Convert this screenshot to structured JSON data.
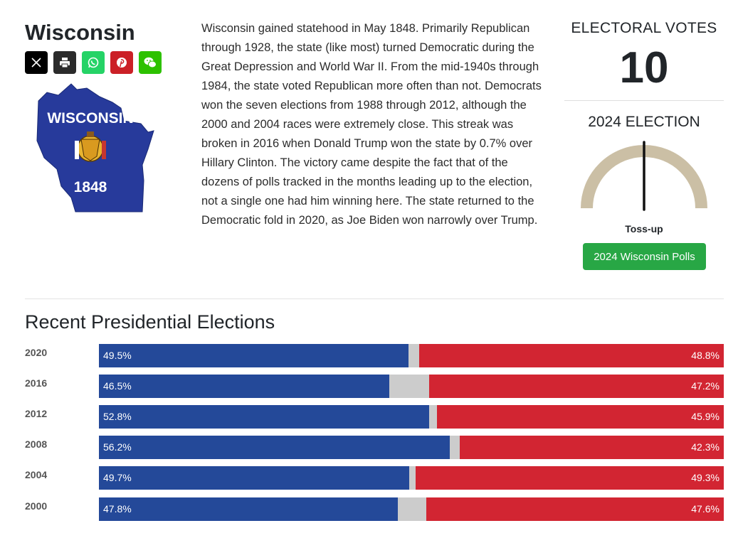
{
  "state": {
    "name": "Wisconsin",
    "flag_title": "WISCONSIN",
    "flag_year": "1848",
    "description": "Wisconsin gained statehood in May 1848. Primarily Republican through 1928, the state (like most) turned Democratic during the Great Depression and World War II. From the mid-1940s through 1984, the state voted Republican more often than not. Democrats won the seven elections from 1988 through 2012, although the 2000 and 2004 races were extremely close. This streak was broken in 2016 when Donald Trump won the state by 0.7% over Hillary Clinton. The victory came despite the fact that of the dozens of polls tracked in the months leading up to the election, not a single one had him winning here. The state returned to the Democratic fold in 2020, as Joe Biden won narrowly over Trump."
  },
  "share": [
    {
      "icon": "x-icon",
      "color": "#000000"
    },
    {
      "icon": "print-icon",
      "color": "#2b2b2b"
    },
    {
      "icon": "whatsapp-icon",
      "color": "#25d366"
    },
    {
      "icon": "pinterest-icon",
      "color": "#cb2027"
    },
    {
      "icon": "wechat-icon",
      "color": "#2dc100"
    }
  ],
  "electoral": {
    "label": "ELECTORAL VOTES",
    "votes": "10"
  },
  "election_2024": {
    "label": "2024 ELECTION",
    "rating": "Toss-up",
    "gauge_color": "#cbbfa5",
    "needle_position": 0.5,
    "polls_button": "2024 Wisconsin Polls"
  },
  "recent": {
    "title": "Recent Presidential Elections",
    "dem_color": "#244999",
    "rep_color": "#d22532",
    "other_color": "#cccccc",
    "rows": [
      {
        "year": "2020",
        "dem": 49.5,
        "rep": 48.8,
        "dem_label": "49.5%",
        "rep_label": "48.8%"
      },
      {
        "year": "2016",
        "dem": 46.5,
        "rep": 47.2,
        "dem_label": "46.5%",
        "rep_label": "47.2%"
      },
      {
        "year": "2012",
        "dem": 52.8,
        "rep": 45.9,
        "dem_label": "52.8%",
        "rep_label": "45.9%"
      },
      {
        "year": "2008",
        "dem": 56.2,
        "rep": 42.3,
        "dem_label": "56.2%",
        "rep_label": "42.3%"
      },
      {
        "year": "2004",
        "dem": 49.7,
        "rep": 49.3,
        "dem_label": "49.7%",
        "rep_label": "49.3%"
      },
      {
        "year": "2000",
        "dem": 47.8,
        "rep": 47.6,
        "dem_label": "47.8%",
        "rep_label": "47.6%"
      }
    ]
  }
}
